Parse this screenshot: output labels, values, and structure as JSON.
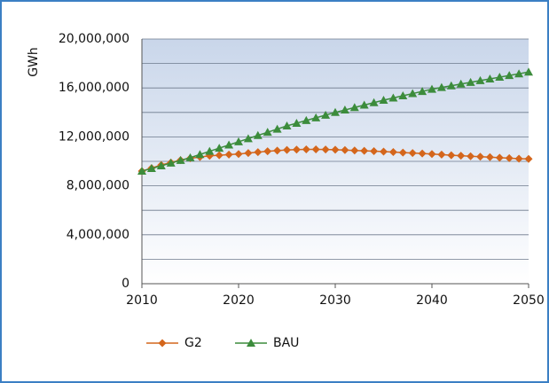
{
  "chart_data": {
    "type": "line",
    "y_label": "GWh",
    "x": [
      2010,
      2011,
      2012,
      2013,
      2014,
      2015,
      2016,
      2017,
      2018,
      2019,
      2020,
      2021,
      2022,
      2023,
      2024,
      2025,
      2026,
      2027,
      2028,
      2029,
      2030,
      2031,
      2032,
      2033,
      2034,
      2035,
      2036,
      2037,
      2038,
      2039,
      2040,
      2041,
      2042,
      2043,
      2044,
      2045,
      2046,
      2047,
      2048,
      2049,
      2050
    ],
    "series": [
      {
        "name": "G2",
        "color": "#d4661c",
        "marker": "diamond",
        "values": [
          9200000,
          9450000,
          9700000,
          9900000,
          10100000,
          10250000,
          10350000,
          10450000,
          10500000,
          10550000,
          10600000,
          10680000,
          10750000,
          10820000,
          10880000,
          10930000,
          10960000,
          10980000,
          10980000,
          10970000,
          10950000,
          10920000,
          10890000,
          10860000,
          10830000,
          10800000,
          10760000,
          10720000,
          10680000,
          10640000,
          10600000,
          10550000,
          10500000,
          10460000,
          10420000,
          10380000,
          10340000,
          10300000,
          10260000,
          10220000,
          10200000
        ]
      },
      {
        "name": "BAU",
        "color": "#3c8c3c",
        "marker": "triangle",
        "values": [
          9200000,
          9420000,
          9640000,
          9860000,
          10080000,
          10300000,
          10560000,
          10820000,
          11080000,
          11340000,
          11600000,
          11860000,
          12120000,
          12380000,
          12640000,
          12900000,
          13120000,
          13340000,
          13560000,
          13780000,
          14000000,
          14200000,
          14400000,
          14600000,
          14800000,
          15000000,
          15180000,
          15360000,
          15540000,
          15720000,
          15900000,
          16040000,
          16180000,
          16320000,
          16460000,
          16600000,
          16740000,
          16880000,
          17020000,
          17160000,
          17300000
        ]
      }
    ],
    "xlim": [
      2010,
      2050
    ],
    "xticks": [
      2010,
      2020,
      2030,
      2040,
      2050
    ],
    "ylim": [
      0,
      20000000
    ],
    "yticks": [
      0,
      {
        "value": 4000000,
        "label": "4,000,000"
      },
      {
        "value": 8000000,
        "label": "8,000,000"
      },
      {
        "value": 12000000,
        "label": "12,000,000"
      },
      {
        "value": 16000000,
        "label": "16,000,000"
      },
      {
        "value": 20000000,
        "label": "20,000,000"
      }
    ],
    "minor_yticks": [
      2000000,
      6000000,
      10000000,
      14000000,
      18000000
    ],
    "grid": true,
    "legend": "bottom"
  }
}
